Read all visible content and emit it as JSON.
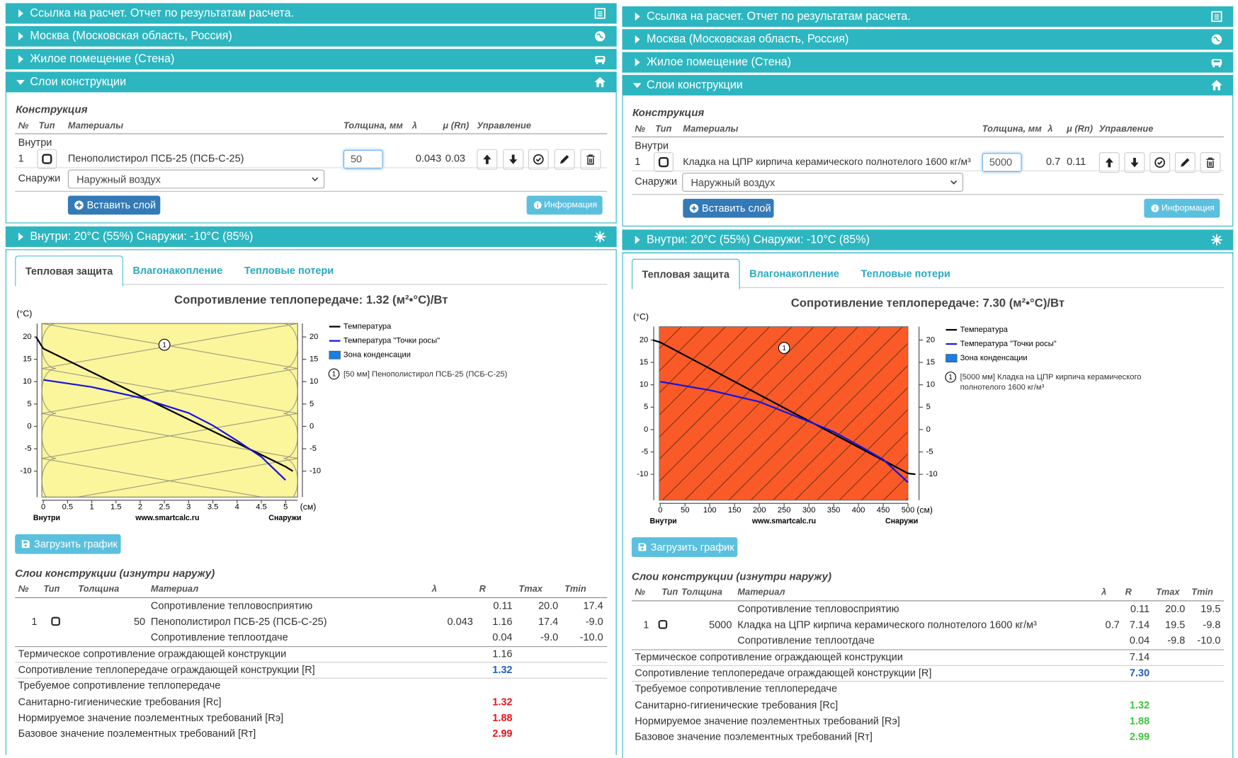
{
  "panels": [
    {
      "headers": [
        "Ссылка на расчет. Отчет по результатам расчета.",
        "Москва (Московская область, Россия)",
        "Жилое помещение (Стена)",
        "Слои конструкции"
      ],
      "construction": {
        "title": "Конструкция",
        "columns": [
          "№",
          "Тип",
          "Материалы",
          "Толщина, мм",
          "λ",
          "μ (Rп)",
          "Управление"
        ],
        "inside": "Внутри",
        "layer": {
          "number": "1",
          "material": "Пенополистирол ПСБ-25 (ПСБ-С-25)",
          "thickness": "50",
          "lambda": "0.043",
          "mu": "0.03"
        },
        "outside": "Снаружи",
        "outside_medium": "Наружный воздух",
        "insert_button": "Вставить слой",
        "info_button": "Информация"
      },
      "conditions": "Внутри: 20°C (55%) Снаружи: -10°C (85%)",
      "tabs": [
        "Тепловая защита",
        "Влагонакопление",
        "Тепловые потери"
      ],
      "chart_data": {
        "type": "line",
        "title": "Сопротивление теплопередаче: 1.32 (м²•°С)/Вт",
        "y_unit": "(°C)",
        "x_unit": "(см)",
        "inside_label": "Внутри",
        "outside_label": "Снаружи",
        "source": "www.smartcalc.ru",
        "xlim": [
          -0.03,
          5.25
        ],
        "xticks": [
          0,
          0.5,
          1,
          1.5,
          2,
          2.5,
          3,
          3.5,
          4,
          4.5,
          5
        ],
        "ylim": [
          -15.8,
          23
        ],
        "yticks": [
          20,
          15,
          10,
          5,
          0,
          -5,
          -10
        ],
        "layer_fill": "#fbf59c",
        "layer_pattern": "loops",
        "layer_number": "1",
        "layer_label": "[50 мм] Пенополистирол ПСБ-25 (ПСБ-С-25)",
        "condensation_zone": {
          "name": "Зона конденсации",
          "color": "#1a7fe0"
        },
        "series": [
          {
            "name": "Температура",
            "color": "#000000",
            "x": [
              -0.15,
              0,
              5,
              5.15
            ],
            "values": [
              20,
              17.4,
              -9,
              -10
            ]
          },
          {
            "name": "Температура \"Точки росы\"",
            "color": "#1414e0",
            "x": [
              0,
              1,
              2,
              3,
              3.5,
              4,
              4.5,
              5
            ],
            "values": [
              10.4,
              8.8,
              6.4,
              3.0,
              0.2,
              -3.2,
              -6.8,
              -12.0
            ]
          }
        ]
      },
      "download_button": "Загрузить график",
      "layers": {
        "title": "Слои конструкции (изнутри наружу)",
        "columns": [
          "№",
          "Тип",
          "Толщина",
          "Материал",
          "λ",
          "R",
          "Tmax",
          "Tmin"
        ],
        "rows": [
          {
            "material": "Сопротивление тепловосприятию",
            "r": "0.11",
            "tmax": "20.0",
            "tmin": "17.4"
          },
          {
            "number": "1",
            "thickness": "50",
            "material": "Пенополистирол ПСБ-25 (ПСБ-С-25)",
            "lambda": "0.043",
            "r": "1.16",
            "tmax": "17.4",
            "tmin": "-9.0"
          },
          {
            "material": "Сопротивление теплоотдаче",
            "r": "0.04",
            "tmax": "-9.0",
            "tmin": "-10.0"
          }
        ]
      },
      "summary": [
        {
          "label": "Термическое сопротивление ограждающей конструкции",
          "value": "1.16"
        },
        {
          "label": "Сопротивление теплопередаче ограждающей конструкции [R]",
          "value": "1.32",
          "color": "#1f5fbf"
        },
        {
          "label": "Требуемое сопротивление теплопередаче"
        },
        {
          "label": "Санитарно-гигиенические требования [Rc]",
          "value": "1.32",
          "color": "#e8141b"
        },
        {
          "label": "Нормируемое значение поэлементных требований [Rэ]",
          "value": "1.88",
          "color": "#e8141b"
        },
        {
          "label": "Базовое значение поэлементных требований [Rт]",
          "value": "2.99",
          "color": "#e8141b"
        }
      ]
    },
    {
      "headers": [
        "Ссылка на расчет. Отчет по результатам расчета.",
        "Москва (Московская область, Россия)",
        "Жилое помещение (Стена)",
        "Слои конструкции"
      ],
      "construction": {
        "title": "Конструкция",
        "columns": [
          "№",
          "Тип",
          "Материалы",
          "Толщина, мм",
          "λ",
          "μ (Rп)",
          "Управление"
        ],
        "inside": "Внутри",
        "layer": {
          "number": "1",
          "material": "Кладка на ЦПР кирпича керамического полнотелого 1600 кг/м³",
          "thickness": "5000",
          "lambda": "0.7",
          "mu": "0.11"
        },
        "outside": "Снаружи",
        "outside_medium": "Наружный воздух",
        "insert_button": "Вставить слой",
        "info_button": "Информация"
      },
      "conditions": "Внутри: 20°C (55%) Снаружи: -10°C (85%)",
      "tabs": [
        "Тепловая защита",
        "Влагонакопление",
        "Тепловые потери"
      ],
      "chart_data": {
        "type": "line",
        "title": "Сопротивление теплопередаче: 7.30 (м²•°С)/Вт",
        "y_unit": "(°C)",
        "x_unit": "(см)",
        "inside_label": "Внутри",
        "outside_label": "Снаружи",
        "source": "www.smartcalc.ru",
        "xlim": [
          -2,
          500
        ],
        "xticks": [
          0,
          50,
          100,
          150,
          200,
          250,
          300,
          350,
          400,
          450,
          500
        ],
        "ylim": [
          -15.8,
          23
        ],
        "yticks": [
          20,
          15,
          10,
          5,
          0,
          -5,
          -10
        ],
        "layer_fill": "#fa5a28",
        "layer_pattern": "diagonal",
        "layer_number": "1",
        "layer_label": "[5000 мм] Кладка на ЦПР кирпича керамического полнотелого 1600 кг/м³",
        "condensation_zone": {
          "name": "Зона конденсации",
          "color": "#1a7fe0"
        },
        "series": [
          {
            "name": "Температура",
            "color": "#000000",
            "x": [
              -15,
              0,
              500,
              515
            ],
            "values": [
              20,
              19.5,
              -9.8,
              -10
            ]
          },
          {
            "name": "Температура \"Точки росы\"",
            "color": "#1414e0",
            "x": [
              0,
              100,
              200,
              300,
              350,
              400,
              450,
              500
            ],
            "values": [
              10.7,
              8.8,
              6.2,
              1.8,
              -0.5,
              -3.5,
              -6.7,
              -11.8
            ]
          }
        ]
      },
      "download_button": "Загрузить график",
      "layers": {
        "title": "Слои конструкции (изнутри наружу)",
        "columns": [
          "№",
          "Тип",
          "Толщина",
          "Материал",
          "λ",
          "R",
          "Tmax",
          "Tmin"
        ],
        "rows": [
          {
            "material": "Сопротивление тепловосприятию",
            "r": "0.11",
            "tmax": "20.0",
            "tmin": "19.5"
          },
          {
            "number": "1",
            "thickness": "5000",
            "material": "Кладка на ЦПР кирпича керамического полнотелого 1600 кг/м³",
            "lambda": "0.7",
            "r": "7.14",
            "tmax": "19.5",
            "tmin": "-9.8"
          },
          {
            "material": "Сопротивление теплоотдаче",
            "r": "0.04",
            "tmax": "-9.8",
            "tmin": "-10.0"
          }
        ]
      },
      "summary": [
        {
          "label": "Термическое сопротивление ограждающей конструкции",
          "value": "7.14"
        },
        {
          "label": "Сопротивление теплопередаче ограждающей конструкции [R]",
          "value": "7.30",
          "color": "#1f5fbf"
        },
        {
          "label": "Требуемое сопротивление теплопередаче"
        },
        {
          "label": "Санитарно-гигиенические требования [Rc]",
          "value": "1.32",
          "color": "#3cc43c"
        },
        {
          "label": "Нормируемое значение поэлементных требований [Rэ]",
          "value": "1.88",
          "color": "#3cc43c"
        },
        {
          "label": "Базовое значение поэлементных требований [Rт]",
          "value": "2.99",
          "color": "#3cc43c"
        }
      ]
    }
  ]
}
